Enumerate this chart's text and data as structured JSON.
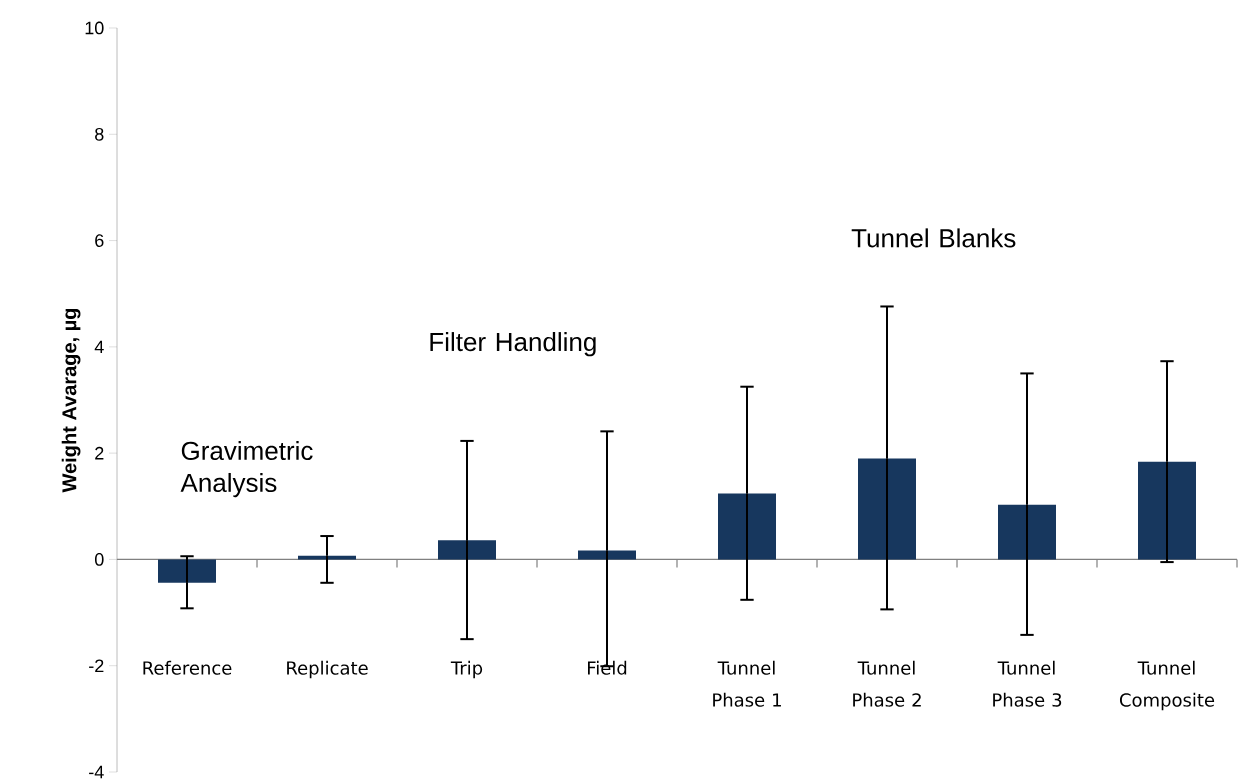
{
  "chart_data": {
    "type": "bar",
    "ylabel": "Weight  Avarage, µg",
    "categories": [
      "Reference",
      "Replicate",
      "Trip",
      "Field",
      "Tunnel Phase 1",
      "Tunnel Phase 2",
      "Tunnel Phase 3",
      "Tunnel Composite"
    ],
    "values": [
      -0.44,
      0.07,
      0.36,
      0.17,
      1.24,
      1.9,
      1.03,
      1.84
    ],
    "errors": [
      [
        -0.92,
        0.06
      ],
      [
        -0.44,
        0.44
      ],
      [
        -1.5,
        2.23
      ],
      [
        -2.01,
        2.41
      ],
      [
        -0.76,
        3.25
      ],
      [
        -0.94,
        4.76
      ],
      [
        -1.42,
        3.5
      ],
      [
        -0.05,
        3.73
      ]
    ],
    "color": "#17375e",
    "ylim": [
      -4,
      10
    ],
    "yticks": [
      -4,
      -2,
      0,
      2,
      4,
      6,
      8,
      10
    ],
    "annotations": [
      "Gravimetric Analysis",
      "Filter Handling",
      "Tunnel Blanks"
    ]
  }
}
